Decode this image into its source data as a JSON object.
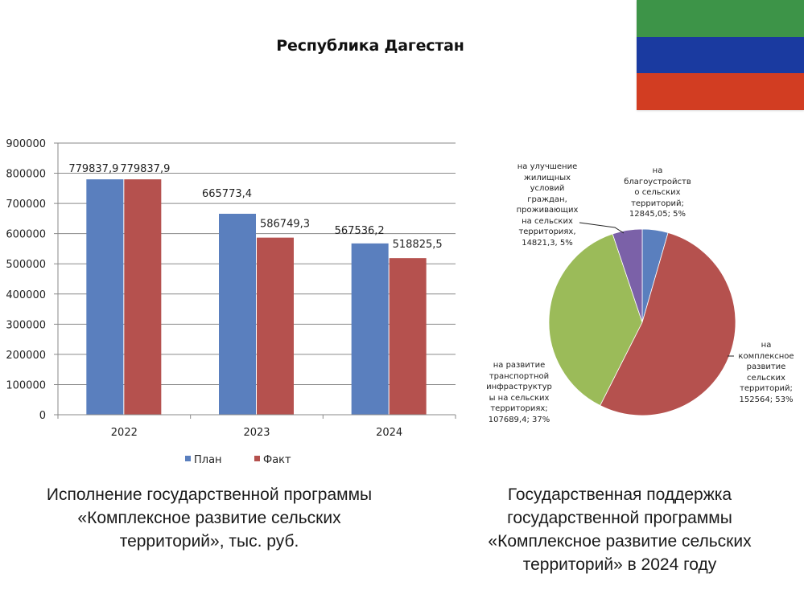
{
  "header": {
    "title": "Республика Дагестан",
    "flag": {
      "name": "flag-of-dagestan",
      "stripes": [
        "#3d9448",
        "#1a3aa0",
        "#d23d22"
      ]
    }
  },
  "chart_data": [
    {
      "type": "bar",
      "title": "",
      "xlabel": "",
      "ylabel": "",
      "categories": [
        "2022",
        "2023",
        "2024"
      ],
      "series": [
        {
          "name": "План",
          "color": "#5a7fbe",
          "values": [
            779837.9,
            665773.4,
            567536.2
          ],
          "labels": [
            "779837,9",
            "665773,4",
            "567536,2"
          ]
        },
        {
          "name": "Факт",
          "color": "#b5514e",
          "values": [
            779837.9,
            586749.3,
            518825.5
          ],
          "labels": [
            "779837,9",
            "586749,3",
            "518825,5"
          ]
        }
      ],
      "ylim": [
        0,
        900000
      ],
      "yticks": [
        "0",
        "100000",
        "200000",
        "300000",
        "400000",
        "500000",
        "600000",
        "700000",
        "800000",
        "900000"
      ],
      "grid": true,
      "legend_position": "bottom",
      "caption": "Исполнение государственной программы «Комплексное развитие сельских территорий», тыс. руб."
    },
    {
      "type": "pie",
      "title": "",
      "slices": [
        {
          "label": "на благоустройство сельских территорий",
          "value": 12845.05,
          "percent": 5,
          "color": "#5a7fbe",
          "text": "на\nблагоустройств\nо сельских\nтерриторий;\n12845,05; 5%"
        },
        {
          "label": "на комплексное развитие сельских территорий",
          "value": 152564,
          "percent": 53,
          "color": "#b5514e",
          "text": "на\nкомплексное\nразвитие\nсельских\nтерриторий;\n152564; 53%"
        },
        {
          "label": "на развитие транспортной инфраструктуры на сельских территориях",
          "value": 107689.4,
          "percent": 37,
          "color": "#9bbb59",
          "text": "на развитие\nтранспортной\nинфраструктур\nы на сельских\nтерриториях;\n107689,4; 37%"
        },
        {
          "label": "на улучшение жилищных условий граждан, проживающих на сельских территориях",
          "value": 14821.3,
          "percent": 5,
          "color": "#7b61a8",
          "text": "на улучшение\nжилищных\nусловий\nграждан,\nпроживающих\nна сельских\nтерриториях,\n14821,3, 5%"
        }
      ],
      "caption": "Государственная поддержка государственной программы «Комплексное развитие сельских территорий» в 2024 году"
    }
  ],
  "captions": {
    "bar": [
      "Исполнение государственной программы",
      "«Комплексное развитие сельских",
      "территорий», тыс. руб."
    ],
    "pie": [
      "Государственная поддержка",
      "государственной программы",
      "«Комплексное развитие сельских",
      "территорий» в 2024 году"
    ]
  }
}
